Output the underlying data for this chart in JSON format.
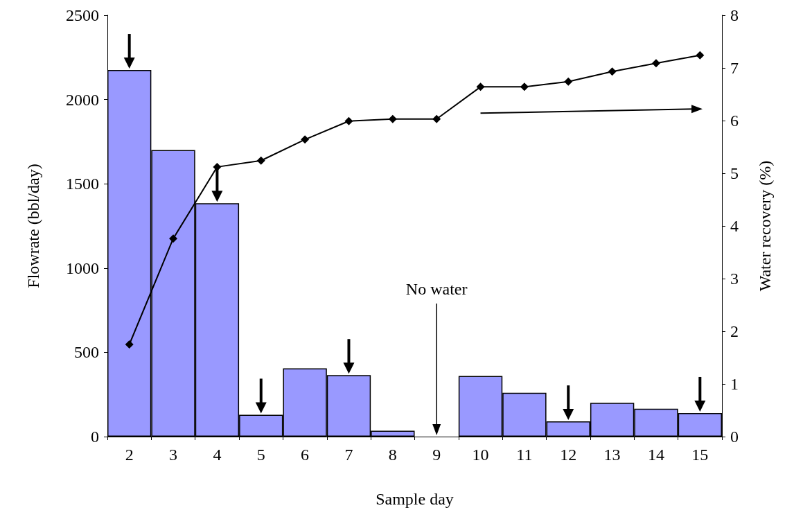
{
  "chart_data": {
    "type": "bar",
    "xlabel": "Sample day",
    "ylabel": "Flowrate (bbl/day)",
    "y2label": "Water recovery (%)",
    "categories": [
      "2",
      "3",
      "4",
      "5",
      "6",
      "7",
      "8",
      "9",
      "10",
      "11",
      "12",
      "13",
      "14",
      "15"
    ],
    "series": [
      {
        "color": "#9999ff",
        "values": [
          2175,
          1700,
          1385,
          130,
          405,
          365,
          35,
          null,
          360,
          260,
          90,
          200,
          165,
          140
        ]
      },
      {
        "type": "line",
        "axis": "y2",
        "color": "#000000",
        "marker": "diamond",
        "values": [
          1.75,
          3.76,
          5.12,
          5.24,
          5.64,
          5.99,
          6.03,
          6.03,
          6.64,
          6.64,
          6.74,
          6.93,
          7.09,
          7.24
        ]
      }
    ],
    "ylim": [
      0,
      2500
    ],
    "yticks": [
      0,
      500,
      1000,
      1500,
      2000,
      2500
    ],
    "y2lim": [
      0,
      8
    ],
    "y2ticks": [
      0,
      1,
      2,
      3,
      4,
      5,
      6,
      7,
      8
    ],
    "annotations": [
      "No water"
    ],
    "grid": false
  }
}
